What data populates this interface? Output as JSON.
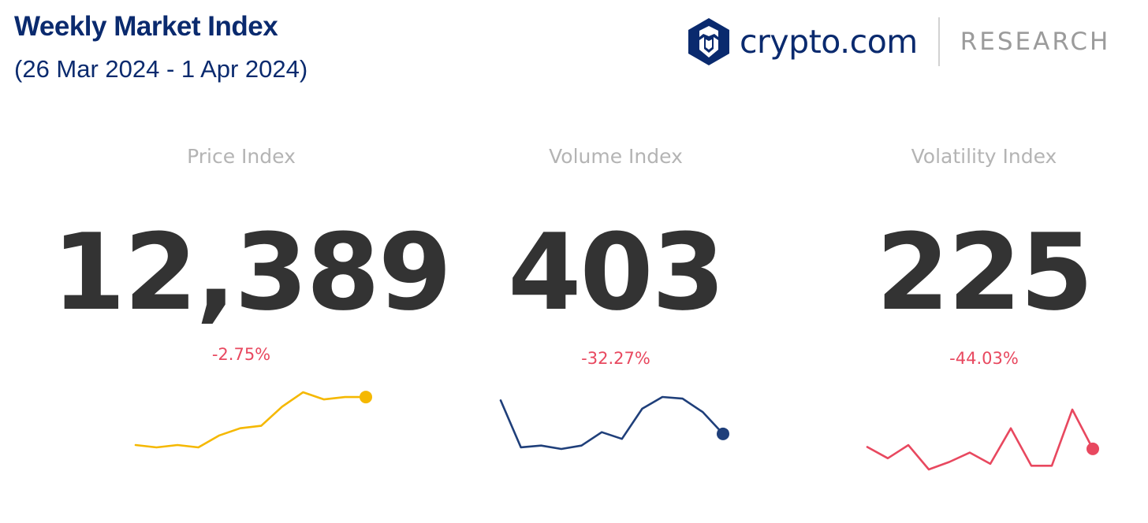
{
  "header": {
    "title": "Weekly Market Index",
    "subtitle": "(26 Mar 2024 - 1 Apr 2024)"
  },
  "brand": {
    "name": "crypto.com",
    "tag": "RESEARCH",
    "logo_icon": "crypto-com-lion-shield-icon",
    "name_color": "#0a2a6e"
  },
  "chart_data": [
    {
      "type": "line",
      "label": "Price Index",
      "value": "12,389",
      "change": "-2.75%",
      "color": "#f5b800",
      "values": [
        10,
        9,
        10,
        9,
        14,
        17,
        18,
        26,
        32,
        29,
        30,
        30
      ]
    },
    {
      "type": "line",
      "label": "Volume Index",
      "value": "403",
      "change": "-32.27%",
      "color": "#1f3f7a",
      "values": [
        40,
        12,
        13,
        11,
        13,
        21,
        17,
        35,
        42,
        41,
        33,
        20
      ]
    },
    {
      "type": "line",
      "label": "Volatility Index",
      "value": "225",
      "change": "-44.03%",
      "color": "#e8485f",
      "values": [
        21,
        15,
        22,
        9,
        13,
        18,
        12,
        31,
        11,
        11,
        41,
        20
      ]
    }
  ]
}
